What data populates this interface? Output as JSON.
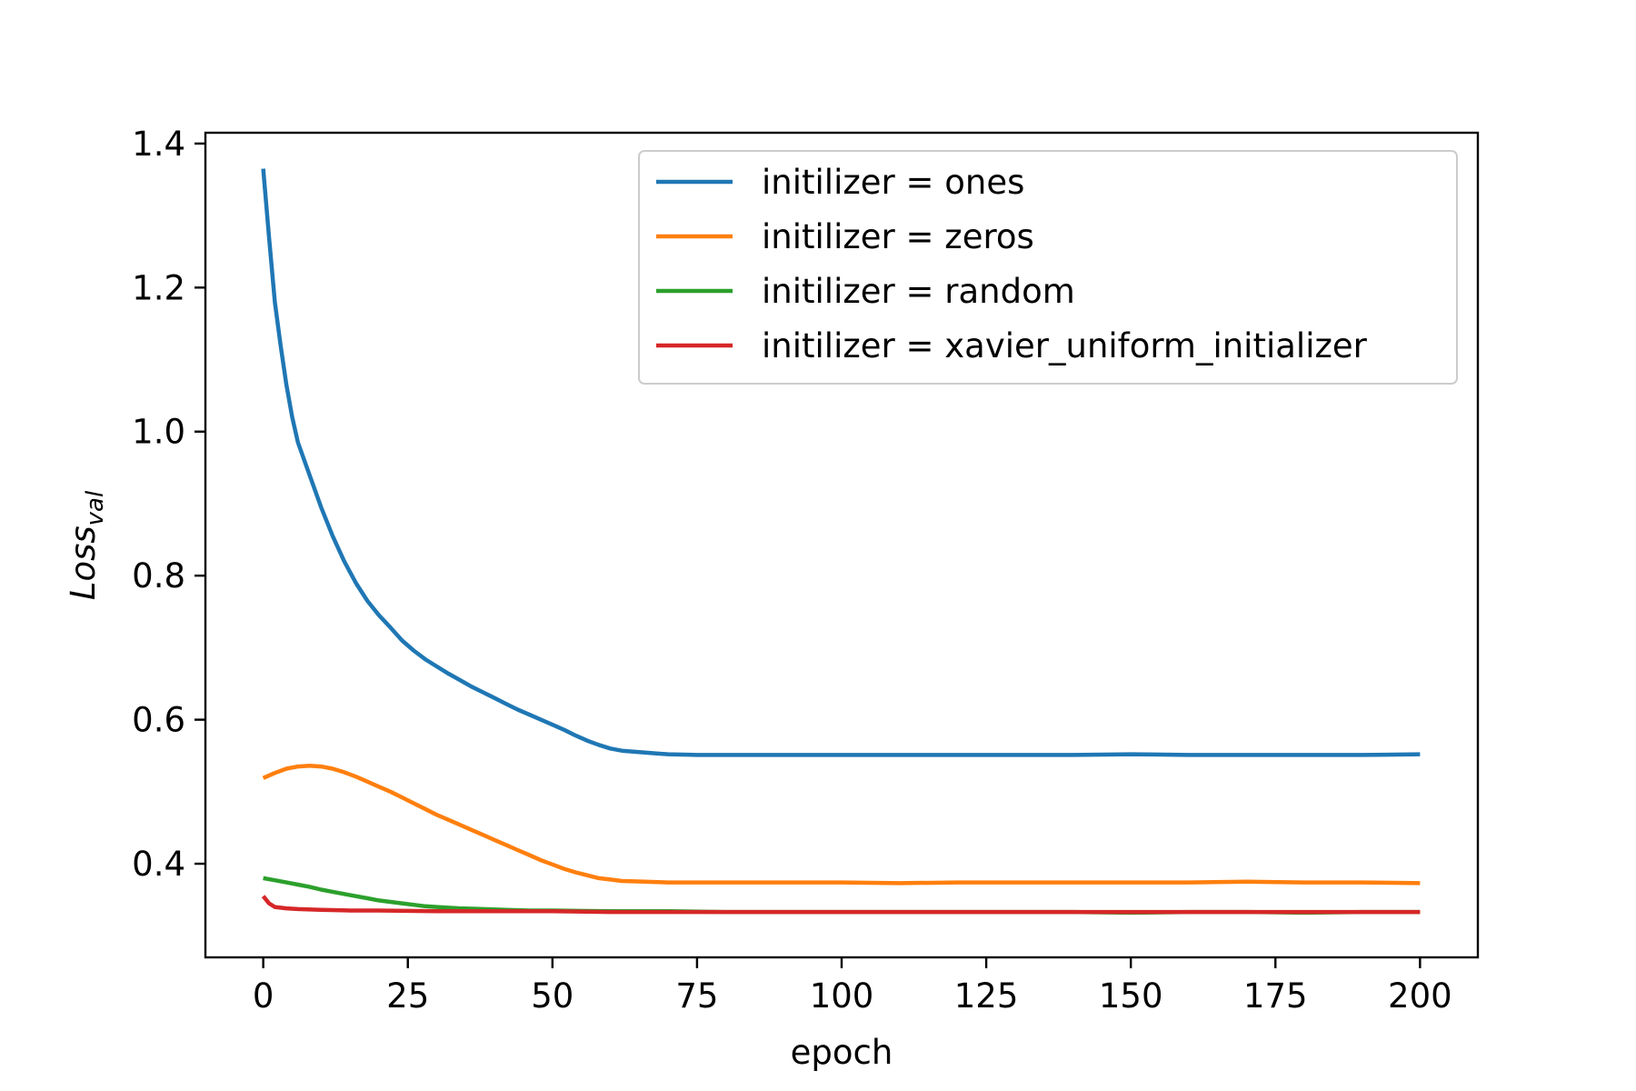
{
  "chart_data": {
    "type": "line",
    "title": "",
    "xlabel": "epoch",
    "ylabel": {
      "main": "Loss",
      "sub": "val"
    },
    "xlim": [
      -10,
      210
    ],
    "ylim": [
      0.27,
      1.415
    ],
    "xticks": [
      0,
      25,
      50,
      75,
      100,
      125,
      150,
      175,
      200
    ],
    "yticks": [
      0.4,
      0.6,
      0.8,
      1.0,
      1.2,
      1.4
    ],
    "ytick_labels": [
      "0.4",
      "0.6",
      "0.8",
      "1.0",
      "1.2",
      "1.4"
    ],
    "grid": false,
    "legend_position": "top-right",
    "series": [
      {
        "name": "initilizer = ones",
        "color": "#1f77b4",
        "points": [
          [
            0,
            1.365
          ],
          [
            1,
            1.27
          ],
          [
            2,
            1.18
          ],
          [
            3,
            1.12
          ],
          [
            4,
            1.065
          ],
          [
            5,
            1.02
          ],
          [
            6,
            0.985
          ],
          [
            8,
            0.94
          ],
          [
            10,
            0.895
          ],
          [
            12,
            0.855
          ],
          [
            14,
            0.82
          ],
          [
            16,
            0.79
          ],
          [
            18,
            0.765
          ],
          [
            20,
            0.745
          ],
          [
            22,
            0.728
          ],
          [
            24,
            0.71
          ],
          [
            26,
            0.696
          ],
          [
            28,
            0.684
          ],
          [
            30,
            0.674
          ],
          [
            32,
            0.664
          ],
          [
            34,
            0.655
          ],
          [
            36,
            0.646
          ],
          [
            38,
            0.638
          ],
          [
            40,
            0.63
          ],
          [
            42,
            0.622
          ],
          [
            44,
            0.614
          ],
          [
            46,
            0.607
          ],
          [
            48,
            0.6
          ],
          [
            50,
            0.593
          ],
          [
            52,
            0.586
          ],
          [
            54,
            0.578
          ],
          [
            56,
            0.571
          ],
          [
            58,
            0.565
          ],
          [
            60,
            0.56
          ],
          [
            62,
            0.557
          ],
          [
            65,
            0.555
          ],
          [
            68,
            0.553
          ],
          [
            70,
            0.552
          ],
          [
            75,
            0.551
          ],
          [
            80,
            0.551
          ],
          [
            90,
            0.551
          ],
          [
            100,
            0.551
          ],
          [
            110,
            0.551
          ],
          [
            120,
            0.551
          ],
          [
            130,
            0.551
          ],
          [
            140,
            0.551
          ],
          [
            150,
            0.552
          ],
          [
            160,
            0.551
          ],
          [
            170,
            0.551
          ],
          [
            180,
            0.551
          ],
          [
            190,
            0.551
          ],
          [
            200,
            0.552
          ]
        ]
      },
      {
        "name": "initilizer = zeros",
        "color": "#ff7f0e",
        "points": [
          [
            0,
            0.519
          ],
          [
            2,
            0.526
          ],
          [
            4,
            0.532
          ],
          [
            6,
            0.535
          ],
          [
            8,
            0.536
          ],
          [
            10,
            0.535
          ],
          [
            12,
            0.532
          ],
          [
            14,
            0.527
          ],
          [
            16,
            0.521
          ],
          [
            18,
            0.514
          ],
          [
            20,
            0.507
          ],
          [
            22,
            0.5
          ],
          [
            24,
            0.492
          ],
          [
            26,
            0.484
          ],
          [
            28,
            0.476
          ],
          [
            30,
            0.468
          ],
          [
            32,
            0.461
          ],
          [
            34,
            0.454
          ],
          [
            36,
            0.447
          ],
          [
            38,
            0.44
          ],
          [
            40,
            0.433
          ],
          [
            42,
            0.426
          ],
          [
            44,
            0.419
          ],
          [
            46,
            0.412
          ],
          [
            48,
            0.405
          ],
          [
            50,
            0.399
          ],
          [
            52,
            0.393
          ],
          [
            54,
            0.388
          ],
          [
            56,
            0.384
          ],
          [
            58,
            0.38
          ],
          [
            60,
            0.378
          ],
          [
            62,
            0.376
          ],
          [
            66,
            0.375
          ],
          [
            70,
            0.374
          ],
          [
            80,
            0.374
          ],
          [
            90,
            0.374
          ],
          [
            100,
            0.374
          ],
          [
            110,
            0.373
          ],
          [
            120,
            0.374
          ],
          [
            130,
            0.374
          ],
          [
            140,
            0.374
          ],
          [
            150,
            0.374
          ],
          [
            160,
            0.374
          ],
          [
            170,
            0.375
          ],
          [
            180,
            0.374
          ],
          [
            190,
            0.374
          ],
          [
            200,
            0.373
          ]
        ]
      },
      {
        "name": "initilizer = random",
        "color": "#2ca02c",
        "points": [
          [
            0,
            0.38
          ],
          [
            2,
            0.377
          ],
          [
            4,
            0.374
          ],
          [
            6,
            0.371
          ],
          [
            8,
            0.368
          ],
          [
            10,
            0.364
          ],
          [
            12,
            0.361
          ],
          [
            14,
            0.358
          ],
          [
            16,
            0.355
          ],
          [
            18,
            0.352
          ],
          [
            20,
            0.349
          ],
          [
            22,
            0.347
          ],
          [
            24,
            0.345
          ],
          [
            26,
            0.343
          ],
          [
            28,
            0.341
          ],
          [
            30,
            0.34
          ],
          [
            34,
            0.338
          ],
          [
            38,
            0.337
          ],
          [
            42,
            0.336
          ],
          [
            46,
            0.335
          ],
          [
            50,
            0.335
          ],
          [
            60,
            0.334
          ],
          [
            70,
            0.334
          ],
          [
            80,
            0.333
          ],
          [
            90,
            0.333
          ],
          [
            100,
            0.333
          ],
          [
            110,
            0.333
          ],
          [
            120,
            0.333
          ],
          [
            130,
            0.333
          ],
          [
            140,
            0.333
          ],
          [
            150,
            0.332
          ],
          [
            160,
            0.333
          ],
          [
            170,
            0.333
          ],
          [
            180,
            0.332
          ],
          [
            190,
            0.333
          ],
          [
            200,
            0.333
          ]
        ]
      },
      {
        "name": "initilizer = xavier_uniform_initializer",
        "color": "#d62728",
        "points": [
          [
            0,
            0.355
          ],
          [
            1,
            0.345
          ],
          [
            2,
            0.34
          ],
          [
            4,
            0.338
          ],
          [
            6,
            0.337
          ],
          [
            10,
            0.336
          ],
          [
            15,
            0.335
          ],
          [
            20,
            0.335
          ],
          [
            30,
            0.334
          ],
          [
            40,
            0.334
          ],
          [
            50,
            0.334
          ],
          [
            60,
            0.333
          ],
          [
            70,
            0.333
          ],
          [
            80,
            0.333
          ],
          [
            90,
            0.333
          ],
          [
            100,
            0.333
          ],
          [
            110,
            0.333
          ],
          [
            120,
            0.333
          ],
          [
            130,
            0.333
          ],
          [
            140,
            0.333
          ],
          [
            150,
            0.333
          ],
          [
            160,
            0.333
          ],
          [
            170,
            0.333
          ],
          [
            180,
            0.333
          ],
          [
            190,
            0.333
          ],
          [
            200,
            0.333
          ]
        ]
      }
    ]
  }
}
